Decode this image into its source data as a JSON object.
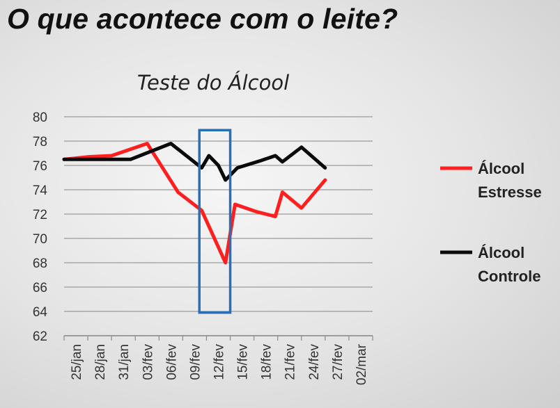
{
  "slide": {
    "title": "O que acontece com o leite?"
  },
  "chart_data": {
    "type": "line",
    "title": "Teste do Álcool",
    "xlabel": "",
    "ylabel": "",
    "ylim": [
      62,
      80
    ],
    "ytick_step": 2,
    "y_ticks": [
      "62",
      "64",
      "66",
      "68",
      "70",
      "72",
      "74",
      "76",
      "78",
      "80"
    ],
    "x_tick_labels": [
      "25/jan",
      "28/jan",
      "31/jan",
      "03/fev",
      "06/fev",
      "09/fev",
      "12/fev",
      "15/fev",
      "18/fev",
      "21/fev",
      "24/fev",
      "27/fev",
      "02/mar"
    ],
    "x_domain": [
      0,
      13
    ],
    "grid": true,
    "legend_position": "right",
    "series": [
      {
        "name": "Álcool Estresse",
        "color": "#ff1f1f",
        "points": [
          [
            0,
            76.5
          ],
          [
            1,
            76.7
          ],
          [
            2,
            76.8
          ],
          [
            3.5,
            77.8
          ],
          [
            4.8,
            73.8
          ],
          [
            5.8,
            72.3
          ],
          [
            6.8,
            68.0
          ],
          [
            7.2,
            72.8
          ],
          [
            8.1,
            72.2
          ],
          [
            8.9,
            71.8
          ],
          [
            9.2,
            73.8
          ],
          [
            10.0,
            72.5
          ],
          [
            11.0,
            74.8
          ]
        ]
      },
      {
        "name": "Álcool Controle",
        "color": "#0a0a0a",
        "points": [
          [
            0,
            76.5
          ],
          [
            2.8,
            76.5
          ],
          [
            4.5,
            77.8
          ],
          [
            5.8,
            75.8
          ],
          [
            6.1,
            76.8
          ],
          [
            6.5,
            76.0
          ],
          [
            6.8,
            74.8
          ],
          [
            7.3,
            75.8
          ],
          [
            8.3,
            76.4
          ],
          [
            8.9,
            76.8
          ],
          [
            9.2,
            76.3
          ],
          [
            10.0,
            77.5
          ],
          [
            11.0,
            75.8
          ]
        ]
      }
    ],
    "highlight": {
      "x_range": [
        5.7,
        7.0
      ],
      "y_range": [
        63.9,
        78.9
      ],
      "color": "#2a6fb5"
    }
  }
}
